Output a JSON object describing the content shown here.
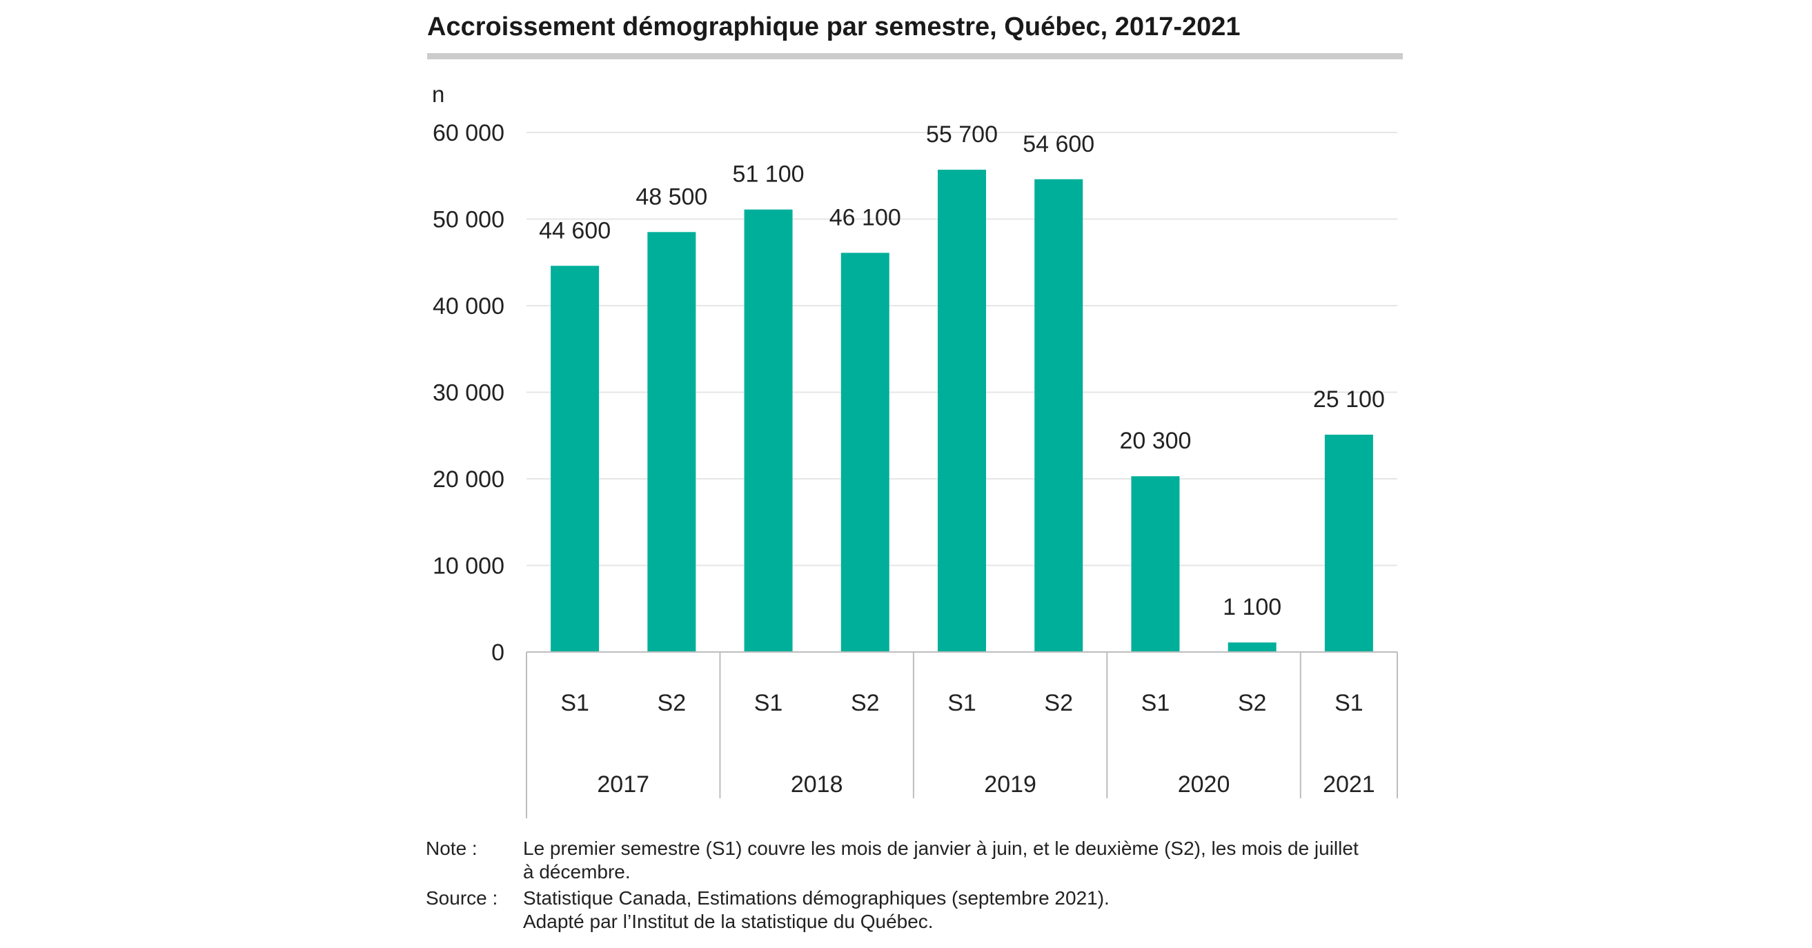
{
  "chart_data": {
    "type": "bar",
    "title": "Accroissement démographique par semestre, Québec, 2017-2021",
    "ylabel": "n",
    "ylim": [
      0,
      60000
    ],
    "yticks": [
      0,
      10000,
      20000,
      30000,
      40000,
      50000,
      60000
    ],
    "ytick_labels": [
      "0",
      "10 000",
      "20 000",
      "30 000",
      "40 000",
      "50 000",
      "60 000"
    ],
    "grid": true,
    "categories": [
      "S1",
      "S2",
      "S1",
      "S2",
      "S1",
      "S2",
      "S1",
      "S2",
      "S1"
    ],
    "groups": [
      {
        "label": "2017",
        "count": 2
      },
      {
        "label": "2018",
        "count": 2
      },
      {
        "label": "2019",
        "count": 2
      },
      {
        "label": "2020",
        "count": 2
      },
      {
        "label": "2021",
        "count": 1
      }
    ],
    "values": [
      44600,
      48500,
      51100,
      46100,
      55700,
      54600,
      20300,
      1100,
      25100
    ],
    "data_labels": [
      "44 600",
      "48 500",
      "51 100",
      "46 100",
      "55 700",
      "54 600",
      "20 300",
      "1 100",
      "25 100"
    ],
    "bar_color": "#00AF9A"
  },
  "notes": {
    "note_label": "Note :",
    "note_line1": "Le premier semestre (S1) couvre les mois de janvier à juin, et le deuxième (S2), les mois de juillet",
    "note_line2": "à décembre.",
    "source_label": "Source :",
    "source_line1": "Statistique Canada, Estimations démographiques (septembre 2021).",
    "source_line2": "Adapté par l’Institut de la statistique du Québec."
  }
}
